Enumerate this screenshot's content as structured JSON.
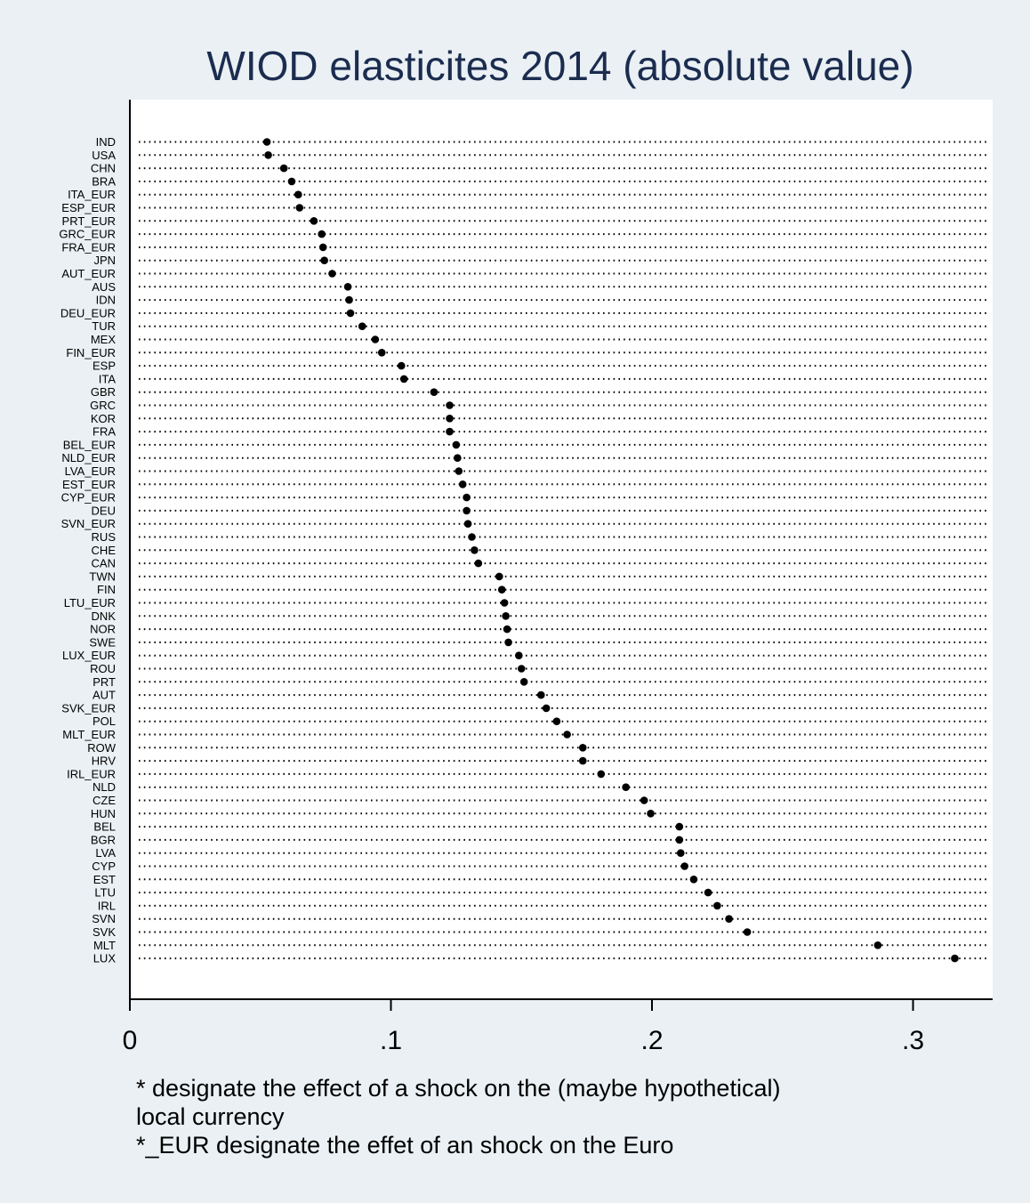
{
  "chart_data": {
    "type": "scatter",
    "title": "WIOD elasticites 2014 (absolute value)",
    "xlim": [
      0,
      0.33
    ],
    "xticks": [
      {
        "value": 0,
        "label": "0"
      },
      {
        "value": 0.1,
        "label": ".1"
      },
      {
        "value": 0.2,
        "label": ".2"
      },
      {
        "value": 0.3,
        "label": ".3"
      }
    ],
    "grid": "dotted horizontal guide line per category",
    "colors": {
      "background": "#eaf0f4",
      "plot": "#ffffff",
      "marker": "#000000",
      "title": "#1b2c4f"
    },
    "categories": [
      "IND",
      "USA",
      "CHN",
      "BRA",
      "ITA_EUR",
      "ESP_EUR",
      "PRT_EUR",
      "GRC_EUR",
      "FRA_EUR",
      "JPN",
      "AUT_EUR",
      "AUS",
      "IDN",
      "DEU_EUR",
      "TUR",
      "MEX",
      "FIN_EUR",
      "ESP",
      "ITA",
      "GBR",
      "GRC",
      "KOR",
      "FRA",
      "BEL_EUR",
      "NLD_EUR",
      "LVA_EUR",
      "EST_EUR",
      "CYP_EUR",
      "DEU",
      "SVN_EUR",
      "RUS",
      "CHE",
      "CAN",
      "TWN",
      "FIN",
      "LTU_EUR",
      "DNK",
      "NOR",
      "SWE",
      "LUX_EUR",
      "ROU",
      "PRT",
      "AUT",
      "SVK_EUR",
      "POL",
      "MLT_EUR",
      "ROW",
      "HRV",
      "IRL_EUR",
      "NLD",
      "CZE",
      "HUN",
      "BEL",
      "BGR",
      "LVA",
      "CYP",
      "EST",
      "LTU",
      "IRL",
      "SVN",
      "SVK",
      "MLT",
      "LUX"
    ],
    "values": [
      0.0525,
      0.053,
      0.059,
      0.062,
      0.0645,
      0.065,
      0.0705,
      0.0735,
      0.074,
      0.0745,
      0.0775,
      0.0835,
      0.084,
      0.0845,
      0.089,
      0.094,
      0.0965,
      0.104,
      0.105,
      0.1165,
      0.1225,
      0.1225,
      0.1225,
      0.125,
      0.1255,
      0.126,
      0.1275,
      0.129,
      0.129,
      0.1295,
      0.131,
      0.132,
      0.1335,
      0.1415,
      0.1425,
      0.1435,
      0.144,
      0.1445,
      0.145,
      0.149,
      0.15,
      0.151,
      0.1575,
      0.1595,
      0.1635,
      0.1675,
      0.1735,
      0.1735,
      0.1805,
      0.19,
      0.197,
      0.1995,
      0.2105,
      0.2105,
      0.211,
      0.2125,
      0.216,
      0.2215,
      0.225,
      0.2295,
      0.2365,
      0.2865,
      0.316
    ]
  },
  "notes": [
    "* designate the effect of a shock on the (maybe hypothetical)",
    "local currency",
    "*_EUR designate the effet of an shock on the Euro"
  ]
}
